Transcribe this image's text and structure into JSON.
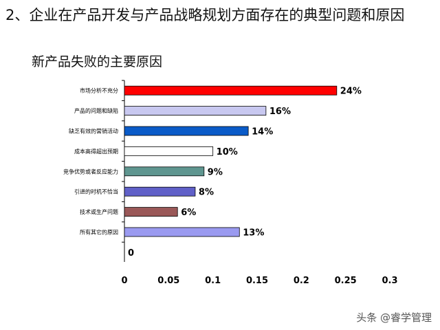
{
  "page": {
    "title": "2、企业在产品开发与产品战略规划方面存在的典型问题和原因",
    "watermark": "头条 @睿学管理"
  },
  "chart_data": {
    "type": "bar",
    "orientation": "horizontal",
    "title": "新产品失败的主要原因",
    "categories": [
      "市场分析不充分",
      "产品的问题和缺陷",
      "缺乏有效的营销活动",
      "成本高得超出预期",
      "竞争优势或者反应能力",
      "引进的时机不恰当",
      "技术或生产问题",
      "所有其它的原因",
      ""
    ],
    "values": [
      0.24,
      0.16,
      0.14,
      0.1,
      0.09,
      0.08,
      0.06,
      0.13,
      0
    ],
    "data_labels": [
      "24%",
      "16%",
      "14%",
      "10%",
      "9%",
      "8%",
      "6%",
      "13%",
      "0"
    ],
    "colors": [
      "#ff0000",
      "#c8c8f0",
      "#0a5bc8",
      "#ffffff",
      "#5f9690",
      "#6060c8",
      "#9a5858",
      "#9a9af0",
      "#ffffff"
    ],
    "x_ticks": [
      "0",
      "0.05",
      "0.1",
      "0.15",
      "0.2",
      "0.25",
      "0.3"
    ],
    "xlim": [
      0,
      0.3
    ],
    "grid": false,
    "legend": "none"
  }
}
